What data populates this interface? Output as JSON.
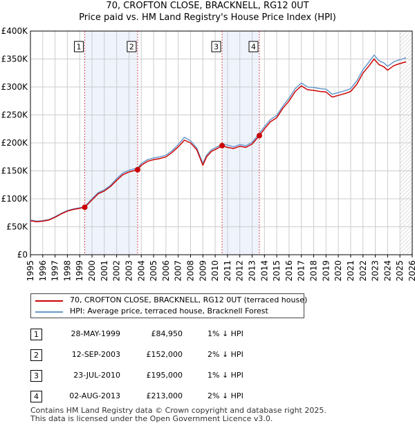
{
  "header": {
    "title": "70, CROFTON CLOSE, BRACKNELL, RG12 0UT",
    "subtitle": "Price paid vs. HM Land Registry's House Price Index (HPI)"
  },
  "colors": {
    "property": "#cc0000",
    "hpi": "#6699cc",
    "shade": "#eef3fc",
    "grid": "#cccccc",
    "marker": "#cc0000"
  },
  "chart_data": {
    "type": "line",
    "title": "70, CROFTON CLOSE, BRACKNELL, RG12 0UT",
    "subtitle": "Price paid vs. HM Land Registry's House Price Index (HPI)",
    "xlabel": "",
    "ylabel": "",
    "xlim": [
      1995,
      2026
    ],
    "ylim": [
      0,
      400000
    ],
    "grid": true,
    "x_ticks": [
      "1995",
      "1996",
      "1997",
      "1998",
      "1999",
      "2000",
      "2001",
      "2002",
      "2003",
      "2004",
      "2005",
      "2006",
      "2007",
      "2008",
      "2009",
      "2010",
      "2011",
      "2012",
      "2013",
      "2014",
      "2015",
      "2016",
      "2017",
      "2018",
      "2019",
      "2020",
      "2021",
      "2022",
      "2023",
      "2024",
      "2025",
      "2026"
    ],
    "y_ticks": [
      {
        "value": 0,
        "label": "£0"
      },
      {
        "value": 50000,
        "label": "£50K"
      },
      {
        "value": 100000,
        "label": "£100K"
      },
      {
        "value": 150000,
        "label": "£150K"
      },
      {
        "value": 200000,
        "label": "£200K"
      },
      {
        "value": 250000,
        "label": "£250K"
      },
      {
        "value": 300000,
        "label": "£300K"
      },
      {
        "value": 350000,
        "label": "£350K"
      },
      {
        "value": 400000,
        "label": "£400K"
      }
    ],
    "shaded_periods": [
      [
        1999.41,
        2003.7
      ],
      [
        2010.56,
        2013.59
      ]
    ],
    "hatch_from": 2025.0,
    "series": [
      {
        "name": "70, CROFTON CLOSE, BRACKNELL, RG12 0UT (terraced house)",
        "color": "#cc0000",
        "x": [
          1995.0,
          1995.5,
          1996.0,
          1996.5,
          1997.0,
          1997.5,
          1998.0,
          1998.5,
          1999.0,
          1999.41,
          2000.0,
          2000.5,
          2001.0,
          2001.5,
          2002.0,
          2002.5,
          2003.0,
          2003.7,
          2004.0,
          2004.5,
          2005.0,
          2005.5,
          2006.0,
          2006.5,
          2007.0,
          2007.5,
          2008.0,
          2008.5,
          2009.0,
          2009.3,
          2009.7,
          2010.0,
          2010.56,
          2011.0,
          2011.5,
          2012.0,
          2012.5,
          2013.0,
          2013.59,
          2014.0,
          2014.5,
          2015.0,
          2015.5,
          2016.0,
          2016.5,
          2017.0,
          2017.5,
          2018.0,
          2018.5,
          2019.0,
          2019.5,
          2020.0,
          2020.5,
          2021.0,
          2021.5,
          2022.0,
          2022.5,
          2022.9,
          2023.3,
          2023.7,
          2024.0,
          2024.5,
          2025.0,
          2025.5
        ],
        "y": [
          61000,
          59000,
          60000,
          62000,
          67000,
          73000,
          78000,
          81000,
          83000,
          84950,
          98000,
          109000,
          114000,
          122000,
          133000,
          143000,
          148000,
          152000,
          160000,
          167000,
          170000,
          172000,
          175000,
          183000,
          193000,
          205000,
          200000,
          188000,
          160000,
          175000,
          185000,
          188000,
          195000,
          192000,
          190000,
          194000,
          192000,
          198000,
          213000,
          225000,
          238000,
          245000,
          262000,
          275000,
          292000,
          302000,
          295000,
          294000,
          292000,
          291000,
          282000,
          285000,
          288000,
          292000,
          305000,
          325000,
          338000,
          350000,
          340000,
          336000,
          330000,
          338000,
          342000,
          345000
        ]
      },
      {
        "name": "HPI: Average price, terraced house, Bracknell Forest",
        "color": "#6699cc",
        "x": [
          1995.0,
          1995.5,
          1996.0,
          1996.5,
          1997.0,
          1997.5,
          1998.0,
          1998.5,
          1999.0,
          1999.41,
          2000.0,
          2000.5,
          2001.0,
          2001.5,
          2002.0,
          2002.5,
          2003.0,
          2003.7,
          2004.0,
          2004.5,
          2005.0,
          2005.5,
          2006.0,
          2006.5,
          2007.0,
          2007.5,
          2008.0,
          2008.5,
          2009.0,
          2009.3,
          2009.7,
          2010.0,
          2010.56,
          2011.0,
          2011.5,
          2012.0,
          2012.5,
          2013.0,
          2013.59,
          2014.0,
          2014.5,
          2015.0,
          2015.5,
          2016.0,
          2016.5,
          2017.0,
          2017.5,
          2018.0,
          2018.5,
          2019.0,
          2019.5,
          2020.0,
          2020.5,
          2021.0,
          2021.5,
          2022.0,
          2022.5,
          2022.9,
          2023.3,
          2023.7,
          2024.0,
          2024.5,
          2025.0,
          2025.5
        ],
        "y": [
          62000,
          60000,
          61000,
          63000,
          68000,
          74000,
          79000,
          82000,
          84000,
          86000,
          100000,
          111000,
          116000,
          124000,
          136000,
          146000,
          151000,
          155000,
          163000,
          170000,
          173000,
          175000,
          178000,
          186000,
          197000,
          210000,
          204000,
          191000,
          163000,
          178000,
          188000,
          191000,
          198000,
          196000,
          193000,
          197000,
          195000,
          201000,
          217000,
          229000,
          242000,
          249000,
          266000,
          280000,
          297000,
          307000,
          300000,
          299000,
          297000,
          296000,
          287000,
          290000,
          293000,
          297000,
          311000,
          331000,
          345000,
          357000,
          347000,
          343000,
          337000,
          345000,
          349000,
          352000
        ]
      }
    ],
    "sale_markers": [
      {
        "label": "1",
        "x": 1999.41,
        "y": 84950
      },
      {
        "label": "2",
        "x": 2003.7,
        "y": 152000
      },
      {
        "label": "3",
        "x": 2010.56,
        "y": 195000
      },
      {
        "label": "4",
        "x": 2013.59,
        "y": 213000
      }
    ]
  },
  "legend": {
    "property_label": "70, CROFTON CLOSE, BRACKNELL, RG12 0UT (terraced house)",
    "hpi_label": "HPI: Average price, terraced house, Bracknell Forest"
  },
  "sales": [
    {
      "num": "1",
      "date": "28-MAY-1999",
      "price": "£84,950",
      "hpi": "1% ↓ HPI"
    },
    {
      "num": "2",
      "date": "12-SEP-2003",
      "price": "£152,000",
      "hpi": "2% ↓ HPI"
    },
    {
      "num": "3",
      "date": "23-JUL-2010",
      "price": "£195,000",
      "hpi": "1% ↓ HPI"
    },
    {
      "num": "4",
      "date": "02-AUG-2013",
      "price": "£213,000",
      "hpi": "2% ↓ HPI"
    }
  ],
  "footer": {
    "line1": "Contains HM Land Registry data © Crown copyright and database right 2025.",
    "line2": "This data is licensed under the Open Government Licence v3.0."
  }
}
